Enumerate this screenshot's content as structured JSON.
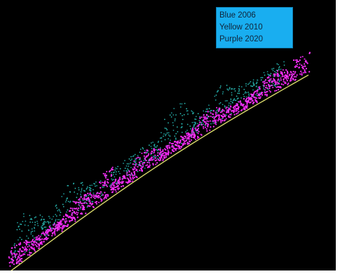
{
  "legend": {
    "items": [
      "Blue 2006",
      "Yellow 2010",
      "Purple 2020"
    ]
  }
}
